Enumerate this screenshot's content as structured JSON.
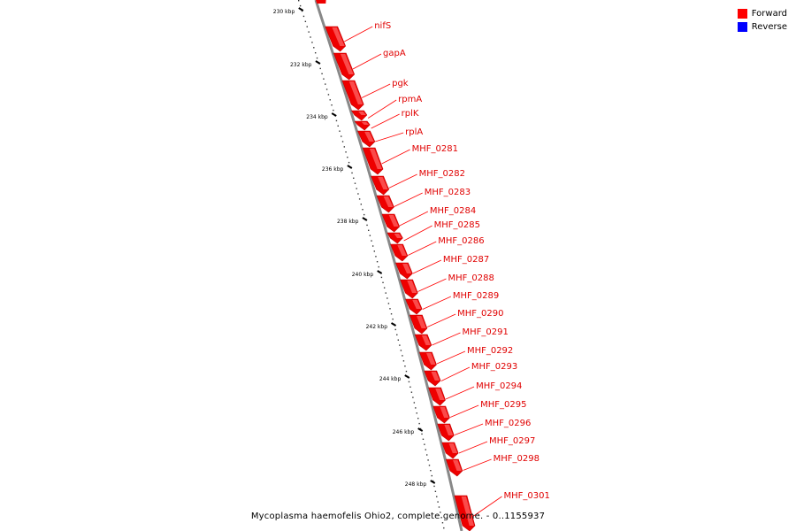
{
  "legend": {
    "forward_label": "Forward",
    "reverse_label": "Reverse",
    "forward_color": "#ff0000",
    "reverse_color": "#0000ff"
  },
  "caption": "Mycoplasma haemofelis Ohio2, complete genome. - 0..1155937",
  "scale_labels": [
    "230 kbp",
    "232 kbp",
    "234 kbp",
    "236 kbp",
    "238 kbp",
    "240 kbp",
    "242 kbp",
    "244 kbp",
    "246 kbp",
    "248 kbp"
  ],
  "genes": [
    "nifS",
    "gapA",
    "pgk",
    "rpmA",
    "rplK",
    "rplA",
    "MHF_0281",
    "MHF_0282",
    "MHF_0283",
    "MHF_0284",
    "MHF_0285",
    "MHF_0286",
    "MHF_0287",
    "MHF_0288",
    "MHF_0289",
    "MHF_0290",
    "MHF_0291",
    "MHF_0292",
    "MHF_0293",
    "MHF_0294",
    "MHF_0295",
    "MHF_0296",
    "MHF_0297",
    "MHF_0298",
    "MHF_0301"
  ]
}
